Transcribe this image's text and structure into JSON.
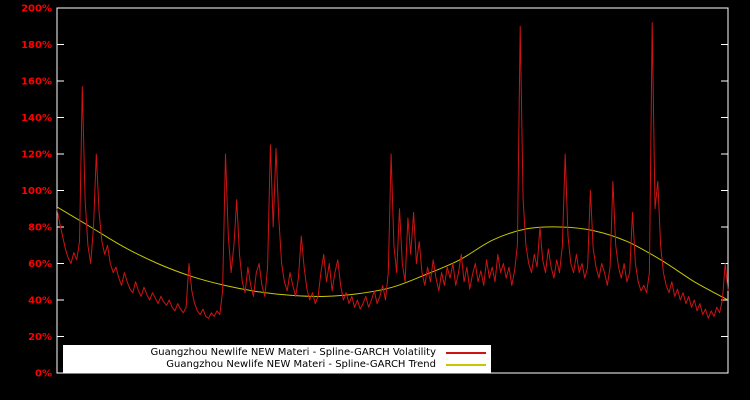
{
  "chart_data": {
    "type": "line",
    "title": "",
    "xlabel": "",
    "ylabel": "",
    "ylim": [
      0,
      200
    ],
    "y_ticks": [
      "0%",
      "20%",
      "40%",
      "60%",
      "80%",
      "100%",
      "120%",
      "140%",
      "160%",
      "180%",
      "200%"
    ],
    "grid": false,
    "legend_position": "bottom-left",
    "background": "#000000",
    "border_color": "#ffffff",
    "axis_label_color": "#ff0000",
    "series": [
      {
        "name": "Guangzhou Newlife NEW Materi - Spline-GARCH Volatility",
        "color": "#cc1414",
        "values": [
          90,
          82,
          75,
          68,
          63,
          60,
          66,
          62,
          72,
          157,
          95,
          70,
          60,
          80,
          120,
          88,
          72,
          65,
          70,
          60,
          55,
          58,
          52,
          48,
          55,
          50,
          46,
          44,
          50,
          45,
          42,
          47,
          43,
          40,
          44,
          41,
          38,
          42,
          39,
          37,
          40,
          36,
          34,
          38,
          35,
          33,
          36,
          60,
          45,
          38,
          34,
          32,
          35,
          31,
          30,
          33,
          31,
          34,
          32,
          45,
          120,
          75,
          55,
          70,
          95,
          65,
          50,
          44,
          58,
          48,
          42,
          55,
          60,
          48,
          42,
          58,
          125,
          80,
          123,
          85,
          60,
          50,
          45,
          55,
          48,
          42,
          52,
          75,
          58,
          46,
          40,
          44,
          38,
          42,
          55,
          65,
          50,
          60,
          45,
          55,
          62,
          48,
          40,
          44,
          38,
          42,
          36,
          40,
          35,
          38,
          42,
          36,
          40,
          45,
          38,
          42,
          48,
          40,
          55,
          120,
          70,
          55,
          90,
          60,
          50,
          85,
          65,
          88,
          60,
          72,
          55,
          48,
          58,
          50,
          62,
          52,
          45,
          55,
          48,
          58,
          52,
          60,
          48,
          55,
          65,
          50,
          58,
          46,
          54,
          60,
          50,
          56,
          48,
          62,
          52,
          58,
          50,
          65,
          55,
          60,
          52,
          58,
          48,
          56,
          70,
          190,
          95,
          70,
          60,
          55,
          65,
          58,
          80,
          62,
          55,
          68,
          58,
          52,
          62,
          55,
          70,
          120,
          75,
          60,
          55,
          65,
          55,
          60,
          52,
          58,
          100,
          68,
          58,
          52,
          60,
          55,
          48,
          58,
          105,
          70,
          58,
          52,
          60,
          50,
          55,
          88,
          60,
          50,
          45,
          48,
          44,
          55,
          192,
          90,
          105,
          70,
          55,
          48,
          44,
          50,
          42,
          46,
          40,
          44,
          38,
          42,
          36,
          40,
          34,
          38,
          32,
          35,
          30,
          34,
          31,
          36,
          33,
          40,
          60,
          45
        ]
      },
      {
        "name": "Guangzhou Newlife NEW Materi - Spline-GARCH Trend",
        "color": "#c8c800",
        "anchors_x": [
          0,
          0.05,
          0.1,
          0.15,
          0.2,
          0.25,
          0.3,
          0.35,
          0.4,
          0.45,
          0.5,
          0.55,
          0.6,
          0.65,
          0.7,
          0.75,
          0.8,
          0.85,
          0.9,
          0.95,
          1.0
        ],
        "anchors_y": [
          91,
          80,
          69,
          60,
          53,
          48,
          44.5,
          42.5,
          42,
          43.5,
          47,
          54,
          62,
          73,
          79,
          80,
          78,
          72,
          62,
          50,
          40
        ]
      }
    ]
  }
}
